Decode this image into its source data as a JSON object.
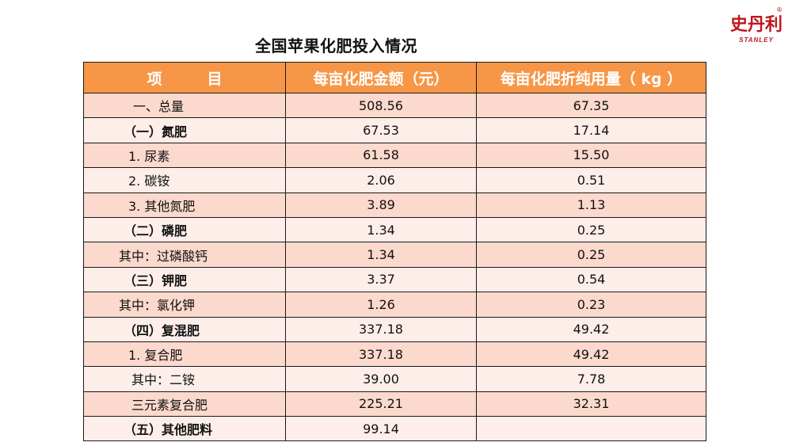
{
  "page": {
    "title": "全国苹果化肥投入情况"
  },
  "logo": {
    "chars": "史丹利",
    "brand": "STANLEY",
    "reg": "®",
    "color": "#c0161d"
  },
  "table": {
    "header_color": "#f79646",
    "row_colors": [
      "#fbd9cc",
      "#fdeeea"
    ],
    "headers": [
      "项　　　目",
      "每亩化肥金额（元）",
      "每亩化肥折纯用量（ kg ）"
    ],
    "rows": [
      {
        "name": "一、总量",
        "amount": "508.56",
        "usage": "67.35"
      },
      {
        "name": "（一）氮肥",
        "amount": "67.53",
        "usage": "17.14"
      },
      {
        "name": "1. 尿素",
        "amount": "61.58",
        "usage": "15.50"
      },
      {
        "name": "2. 碳铵",
        "amount": "2.06",
        "usage": "0.51"
      },
      {
        "name": "3. 其他氮肥",
        "amount": "3.89",
        "usage": "1.13"
      },
      {
        "name": "（二）磷肥",
        "amount": "1.34",
        "usage": "0.25"
      },
      {
        "name": "其中：过磷酸钙",
        "amount": "1.34",
        "usage": "0.25"
      },
      {
        "name": "（三）钾肥",
        "amount": "3.37",
        "usage": "0.54"
      },
      {
        "name": "其中：氯化钾",
        "amount": "1.26",
        "usage": "0.23"
      },
      {
        "name": "（四）复混肥",
        "amount": "337.18",
        "usage": "49.42"
      },
      {
        "name": "1. 复合肥",
        "amount": "337.18",
        "usage": "49.42"
      },
      {
        "name": "其中：二铵",
        "amount": "39.00",
        "usage": "7.78"
      },
      {
        "name": "三元素复合肥",
        "amount": "225.21",
        "usage": "32.31"
      },
      {
        "name": "（五）其他肥料",
        "amount": "99.14",
        "usage": ""
      }
    ]
  }
}
